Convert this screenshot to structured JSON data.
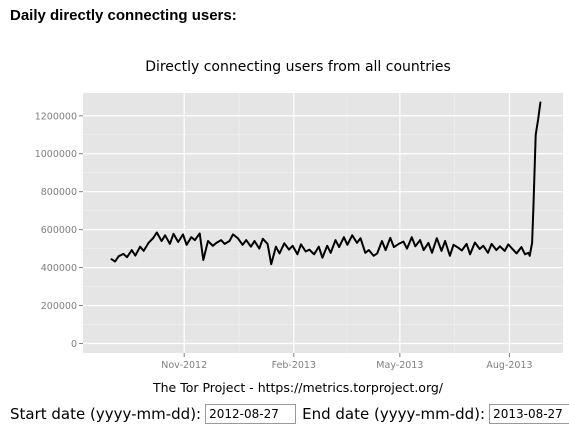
{
  "heading": "Daily directly connecting users:",
  "chart_data": {
    "type": "line",
    "title": "Directly connecting users from all countries",
    "caption": "The Tor Project - https://metrics.torproject.org/",
    "xlabel": "",
    "ylabel": "",
    "grid": true,
    "legend": "none",
    "x_range": [
      "2012-08-27",
      "2013-08-27"
    ],
    "ylim": [
      -50000,
      1320000
    ],
    "y_ticks": [
      0,
      200000,
      400000,
      600000,
      800000,
      1000000,
      1200000
    ],
    "y_tick_labels": [
      "0",
      "200000",
      "400000",
      "600000",
      "800000",
      "1000000",
      "1200000"
    ],
    "x_ticks": [
      "2012-11-01",
      "2013-02-01",
      "2013-05-01",
      "2013-08-01"
    ],
    "x_tick_labels": [
      "Nov-2012",
      "Feb-2013",
      "May-2013",
      "Aug-2013"
    ],
    "series": [
      {
        "color": "#000000",
        "x": [
          "2012-09-01",
          "2012-09-04",
          "2012-09-07",
          "2012-09-11",
          "2012-09-14",
          "2012-09-18",
          "2012-09-21",
          "2012-09-25",
          "2012-09-28",
          "2012-10-02",
          "2012-10-06",
          "2012-10-09",
          "2012-10-13",
          "2012-10-16",
          "2012-10-20",
          "2012-10-23",
          "2012-10-27",
          "2012-10-31",
          "2012-11-03",
          "2012-11-07",
          "2012-11-10",
          "2012-11-14",
          "2012-11-17",
          "2012-11-21",
          "2012-11-25",
          "2012-11-28",
          "2012-12-02",
          "2012-12-05",
          "2012-12-09",
          "2012-12-12",
          "2012-12-16",
          "2012-12-20",
          "2012-12-23",
          "2012-12-27",
          "2012-12-30",
          "2013-01-03",
          "2013-01-06",
          "2013-01-10",
          "2013-01-13",
          "2013-01-17",
          "2013-01-20",
          "2013-01-24",
          "2013-01-28",
          "2013-01-31",
          "2013-02-04",
          "2013-02-07",
          "2013-02-11",
          "2013-02-14",
          "2013-02-18",
          "2013-02-22",
          "2013-02-25",
          "2013-03-01",
          "2013-03-04",
          "2013-03-08",
          "2013-03-11",
          "2013-03-15",
          "2013-03-18",
          "2013-03-22",
          "2013-03-26",
          "2013-03-29",
          "2013-04-02",
          "2013-04-05",
          "2013-04-09",
          "2013-04-12",
          "2013-04-16",
          "2013-04-19",
          "2013-04-23",
          "2013-04-26",
          "2013-04-30",
          "2013-05-04",
          "2013-05-07",
          "2013-05-11",
          "2013-05-14",
          "2013-05-18",
          "2013-05-21",
          "2013-05-25",
          "2013-05-28",
          "2013-06-01",
          "2013-06-05",
          "2013-06-08",
          "2013-06-12",
          "2013-06-15",
          "2013-06-19",
          "2013-06-22",
          "2013-06-26",
          "2013-06-29",
          "2013-07-03",
          "2013-07-07",
          "2013-07-10",
          "2013-07-14",
          "2013-07-17",
          "2013-07-21",
          "2013-07-24",
          "2013-07-28",
          "2013-07-31",
          "2013-08-04",
          "2013-08-07",
          "2013-08-11",
          "2013-08-14",
          "2013-08-17",
          "2013-08-18",
          "2013-08-20",
          "2013-08-21",
          "2013-08-22",
          "2013-08-23",
          "2013-08-25",
          "2013-08-27"
        ],
        "y": [
          444000,
          432000,
          460000,
          472000,
          455000,
          492000,
          463000,
          510000,
          488000,
          530000,
          556000,
          585000,
          540000,
          570000,
          525000,
          578000,
          535000,
          575000,
          520000,
          560000,
          545000,
          580000,
          440000,
          540000,
          515000,
          530000,
          545000,
          525000,
          540000,
          575000,
          555000,
          520000,
          545000,
          510000,
          540000,
          500000,
          552000,
          525000,
          418000,
          510000,
          475000,
          528000,
          495000,
          515000,
          470000,
          522000,
          485000,
          495000,
          470000,
          510000,
          452000,
          515000,
          478000,
          545000,
          508000,
          560000,
          520000,
          570000,
          530000,
          555000,
          478000,
          492000,
          462000,
          475000,
          540000,
          492000,
          557000,
          508000,
          525000,
          537000,
          500000,
          560000,
          512000,
          545000,
          492000,
          530000,
          478000,
          555000,
          488000,
          540000,
          462000,
          520000,
          505000,
          490000,
          525000,
          470000,
          532000,
          498000,
          515000,
          478000,
          525000,
          492000,
          512000,
          488000,
          522000,
          495000,
          475000,
          508000,
          470000,
          478000,
          462000,
          530000,
          700000,
          900000,
          1100000,
          1180000,
          1270000
        ]
      }
    ]
  },
  "form": {
    "start_label": "Start date (yyyy-mm-dd):",
    "start_value": "2012-08-27",
    "end_label": "End date (yyyy-mm-dd):",
    "end_value": "2013-08-27"
  }
}
